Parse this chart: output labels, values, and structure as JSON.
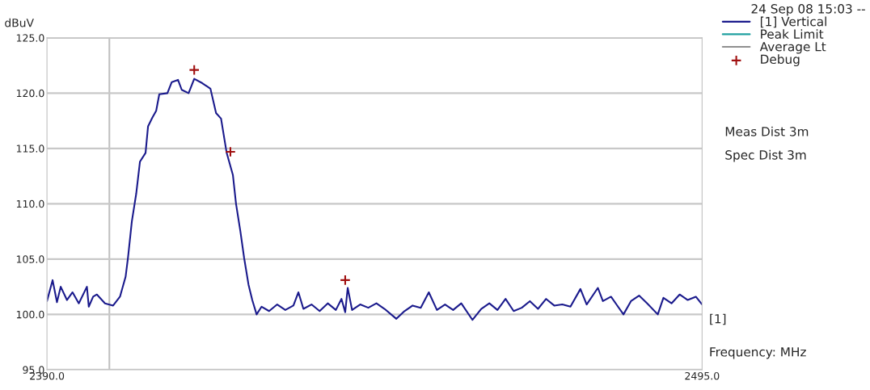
{
  "chart_data": {
    "type": "line",
    "ylabel": "dBuV",
    "xlabel": "Frequency: MHz",
    "annotations": [
      "24 Sep 08 15:03 --",
      "Meas Dist 3m",
      "Spec Dist 3m",
      "[1]"
    ],
    "xlim": [
      2390,
      2495
    ],
    "xticks": [
      {
        "value": 2390,
        "label": "2390.0"
      },
      {
        "value": 2495,
        "label": "2495.0"
      }
    ],
    "ylim": [
      95,
      125
    ],
    "yticks": [
      {
        "value": 95,
        "label": "95.0"
      },
      {
        "value": 100,
        "label": "100.0"
      },
      {
        "value": 105,
        "label": "105.0"
      },
      {
        "value": 110,
        "label": "110.0"
      },
      {
        "value": 115,
        "label": "115.0"
      },
      {
        "value": 120,
        "label": "120.0"
      },
      {
        "value": 125,
        "label": "125.0"
      }
    ],
    "grid": "y",
    "legend": "right",
    "ref_lines": [
      {
        "axis": "x",
        "value": 2400,
        "color": "#c0c0c0"
      }
    ],
    "series": [
      {
        "name": "[1] Vertical",
        "color": "#1a1a8c",
        "x": [
          2390.0,
          2390.9,
          2391.6,
          2392.2,
          2393.2,
          2394.1,
          2395.1,
          2396.4,
          2396.7,
          2397.4,
          2398.0,
          2399.3,
          2400.6,
          2401.7,
          2402.6,
          2403.0,
          2403.6,
          2404.3,
          2404.9,
          2405.8,
          2406.2,
          2406.9,
          2407.5,
          2408.0,
          2409.3,
          2410.0,
          2411.0,
          2411.6,
          2412.7,
          2413.6,
          2414.9,
          2416.2,
          2417.1,
          2417.9,
          2418.8,
          2419.8,
          2420.3,
          2421.0,
          2421.6,
          2422.3,
          2422.9,
          2423.6,
          2424.4,
          2425.6,
          2426.9,
          2428.2,
          2429.5,
          2430.3,
          2431.1,
          2432.4,
          2433.7,
          2435.0,
          2436.3,
          2437.2,
          2437.8,
          2438.2,
          2438.9,
          2440.2,
          2441.5,
          2442.8,
          2444.1,
          2446.0,
          2447.3,
          2448.6,
          2449.9,
          2451.2,
          2452.5,
          2453.8,
          2455.1,
          2456.4,
          2458.2,
          2459.6,
          2460.9,
          2462.2,
          2463.5,
          2464.8,
          2466.1,
          2467.4,
          2468.7,
          2470.0,
          2471.3,
          2472.6,
          2473.9,
          2475.5,
          2476.5,
          2478.3,
          2479.1,
          2480.4,
          2482.4,
          2483.6,
          2484.9,
          2486.2,
          2487.9,
          2488.8,
          2490.1,
          2491.4,
          2492.7,
          2494.0,
          2495.0
        ],
        "values": [
          101.2,
          103.1,
          101.1,
          102.5,
          101.3,
          102.0,
          101.0,
          102.5,
          100.7,
          101.6,
          101.8,
          101.0,
          100.8,
          101.6,
          103.4,
          105.2,
          108.4,
          110.9,
          113.8,
          114.6,
          117.0,
          117.8,
          118.4,
          119.9,
          120.0,
          121.0,
          121.2,
          120.3,
          120.0,
          121.3,
          120.9,
          120.4,
          118.2,
          117.7,
          114.6,
          112.6,
          110.0,
          107.5,
          105.1,
          102.7,
          101.3,
          100.0,
          100.7,
          100.3,
          100.9,
          100.4,
          100.8,
          102.0,
          100.5,
          100.9,
          100.3,
          101.0,
          100.4,
          101.4,
          100.2,
          102.4,
          100.4,
          100.9,
          100.6,
          101.0,
          100.5,
          99.6,
          100.3,
          100.8,
          100.6,
          102.0,
          100.4,
          100.9,
          100.4,
          101.0,
          99.5,
          100.5,
          101.0,
          100.4,
          101.4,
          100.3,
          100.6,
          101.2,
          100.5,
          101.4,
          100.8,
          100.9,
          100.7,
          102.3,
          100.9,
          102.4,
          101.2,
          101.6,
          100.0,
          101.2,
          101.7,
          101.0,
          100.0,
          101.5,
          101.0,
          101.8,
          101.3,
          101.6,
          100.9
        ]
      },
      {
        "name": "Peak Limit",
        "color": "#20a0a0"
      },
      {
        "name": "Average Lt",
        "color": "#909090"
      },
      {
        "name": "Debug",
        "type": "scatter",
        "color": "#a01010",
        "marker": "cross",
        "x": [
          2413.6,
          2419.4,
          2437.8
        ],
        "values": [
          122.1,
          114.7,
          103.1
        ]
      }
    ]
  }
}
